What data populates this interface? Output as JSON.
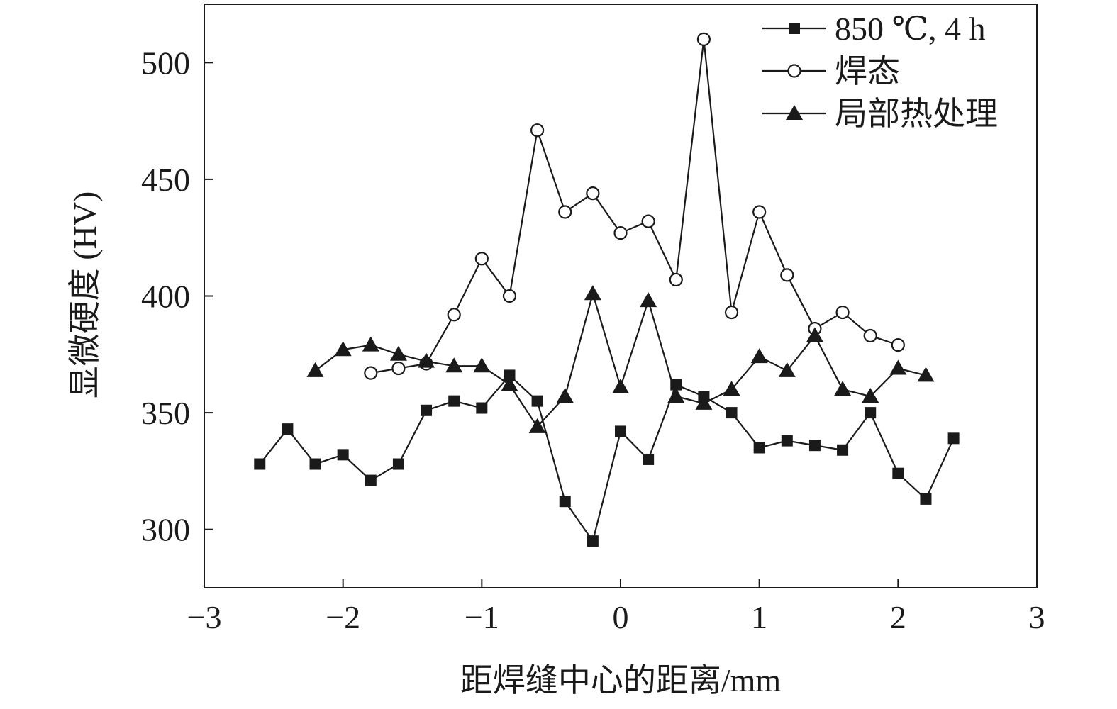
{
  "chart_data": {
    "type": "line",
    "xlabel": "距焊缝中心的距离/mm",
    "ylabel": "显微硬度 (HV)",
    "xlim": [
      -3,
      3
    ],
    "ylim": [
      275,
      525
    ],
    "xticks": [
      "−3",
      "−2",
      "−1",
      "0",
      "1",
      "2",
      "3"
    ],
    "xtick_values": [
      -3,
      -2,
      -1,
      0,
      1,
      2,
      3
    ],
    "yticks": [
      "300",
      "350",
      "400",
      "450",
      "500"
    ],
    "ytick_values": [
      300,
      350,
      400,
      450,
      500
    ],
    "grid": false,
    "legend_position": "top-right",
    "series": [
      {
        "name": "850 ℃, 4 h",
        "marker": "filled-square",
        "x": [
          -2.6,
          -2.4,
          -2.2,
          -2.0,
          -1.8,
          -1.6,
          -1.4,
          -1.2,
          -1.0,
          -0.8,
          -0.6,
          -0.4,
          -0.2,
          0.0,
          0.2,
          0.4,
          0.6,
          0.8,
          1.0,
          1.2,
          1.4,
          1.6,
          1.8,
          2.0,
          2.2,
          2.4
        ],
        "y": [
          328,
          343,
          328,
          332,
          321,
          328,
          351,
          355,
          352,
          366,
          355,
          312,
          295,
          342,
          330,
          362,
          357,
          350,
          335,
          338,
          336,
          334,
          350,
          324,
          313,
          339
        ]
      },
      {
        "name": "焊态",
        "marker": "open-circle",
        "x": [
          -1.8,
          -1.6,
          -1.4,
          -1.2,
          -1.0,
          -0.8,
          -0.6,
          -0.4,
          -0.2,
          0.0,
          0.2,
          0.4,
          0.6,
          0.8,
          1.0,
          1.2,
          1.4,
          1.6,
          1.8,
          2.0
        ],
        "y": [
          367,
          369,
          371,
          392,
          416,
          400,
          471,
          436,
          444,
          427,
          432,
          407,
          510,
          393,
          436,
          409,
          386,
          393,
          383,
          379
        ]
      },
      {
        "name": "局部热处理",
        "marker": "filled-triangle",
        "x": [
          -2.2,
          -2.0,
          -1.8,
          -1.6,
          -1.4,
          -1.2,
          -1.0,
          -0.8,
          -0.6,
          -0.4,
          -0.2,
          0.0,
          0.2,
          0.4,
          0.6,
          0.8,
          1.0,
          1.2,
          1.4,
          1.6,
          1.8,
          2.0,
          2.2
        ],
        "y": [
          368,
          377,
          379,
          375,
          372,
          370,
          370,
          362,
          344,
          357,
          401,
          361,
          398,
          357,
          354,
          360,
          374,
          368,
          383,
          360,
          357,
          369,
          366
        ]
      }
    ]
  }
}
